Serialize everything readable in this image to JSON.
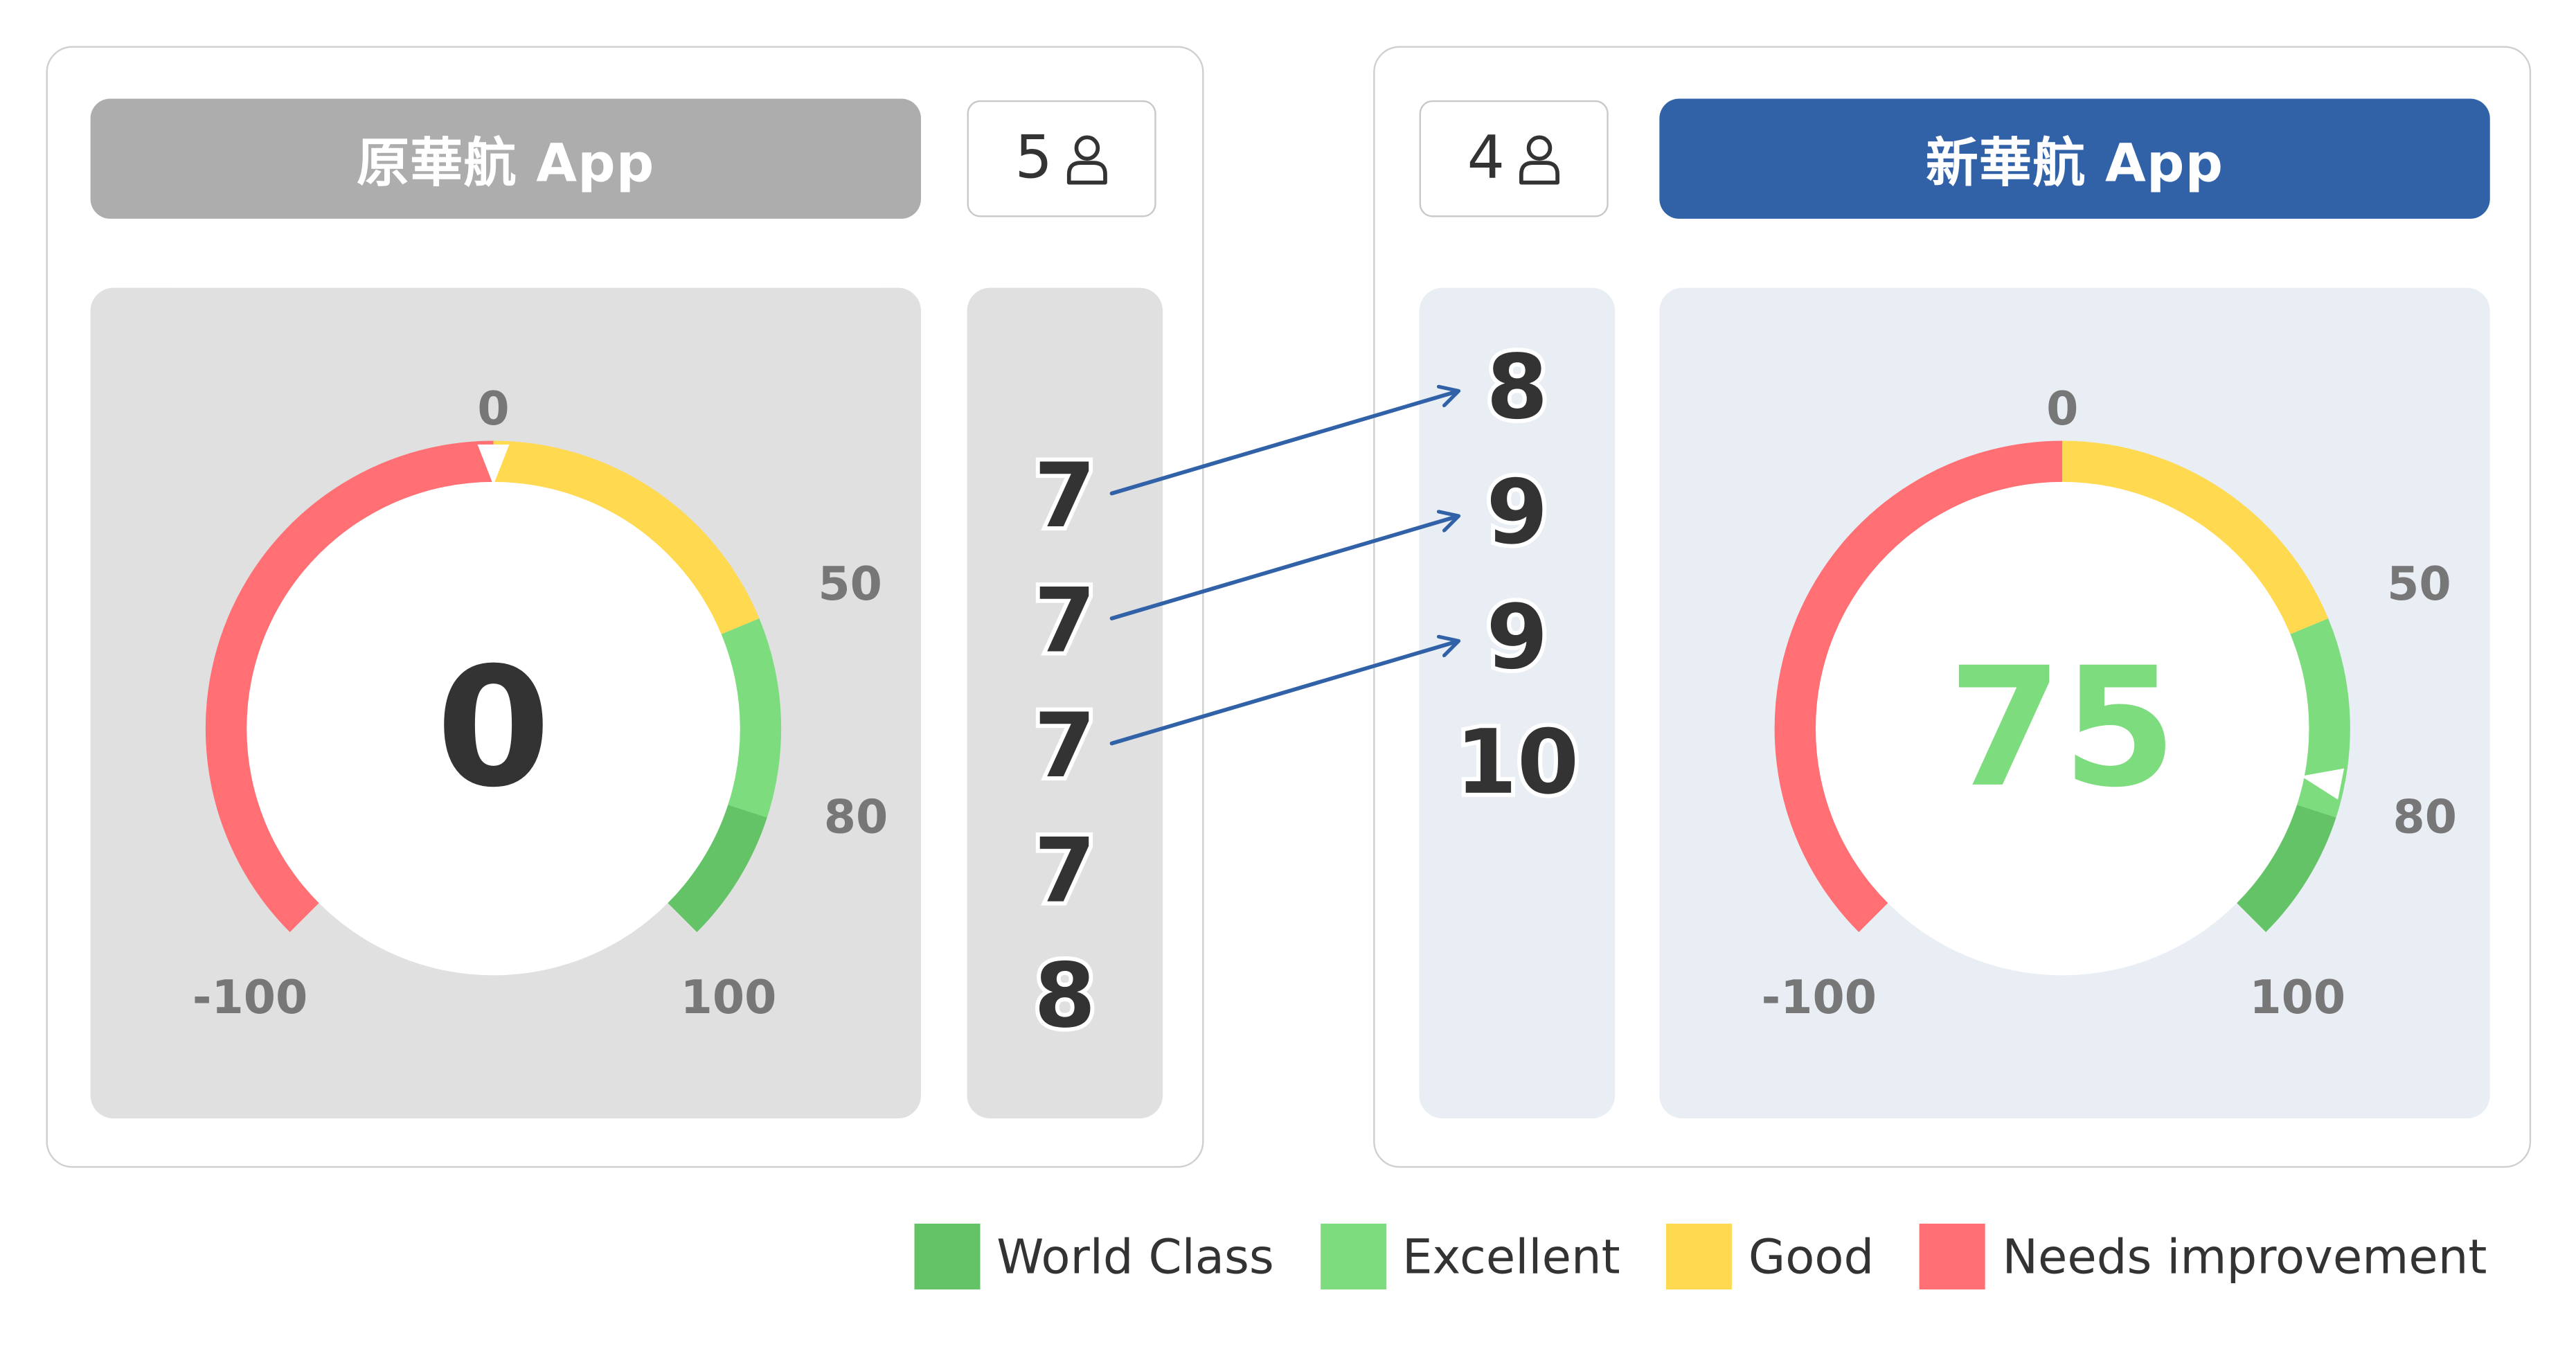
{
  "panels": {
    "original": {
      "title": "原華航 App",
      "user_count": "5",
      "gauge_value": "0",
      "value_color": "#333333",
      "scores": [
        "7",
        "7",
        "7",
        "7",
        "8"
      ]
    },
    "new": {
      "title": "新華航 App",
      "user_count": "4",
      "gauge_value": "75",
      "value_color": "#7ddc7e",
      "scores": [
        "8",
        "9",
        "9",
        "10"
      ]
    }
  },
  "gauge": {
    "scale_min": -100,
    "scale_max": 100,
    "tick_labels": [
      "0",
      "50",
      "80",
      "100",
      "-100"
    ],
    "bands": [
      {
        "from": -100,
        "to": 0,
        "color": "#ff6f74"
      },
      {
        "from": 0,
        "to": 50,
        "color": "#ffd94f"
      },
      {
        "from": 50,
        "to": 80,
        "color": "#7ddc7e"
      },
      {
        "from": 80,
        "to": 100,
        "color": "#63c366"
      }
    ]
  },
  "arrows": [
    {
      "from_score_index": 0,
      "to_score_index": 0
    },
    {
      "from_score_index": 1,
      "to_score_index": 1
    },
    {
      "from_score_index": 2,
      "to_score_index": 2
    }
  ],
  "colors": {
    "original_title_bg": "#adadad",
    "new_title_bg": "#3162a8",
    "arrow": "#3162a8"
  },
  "icons": {
    "user_icon": "person-outline-icon"
  },
  "legend": [
    {
      "label": "World Class",
      "color": "#63c366"
    },
    {
      "label": "Excellent",
      "color": "#7ddc7e"
    },
    {
      "label": "Good",
      "color": "#ffd94f"
    },
    {
      "label": "Needs improvement",
      "color": "#ff6f74"
    }
  ]
}
